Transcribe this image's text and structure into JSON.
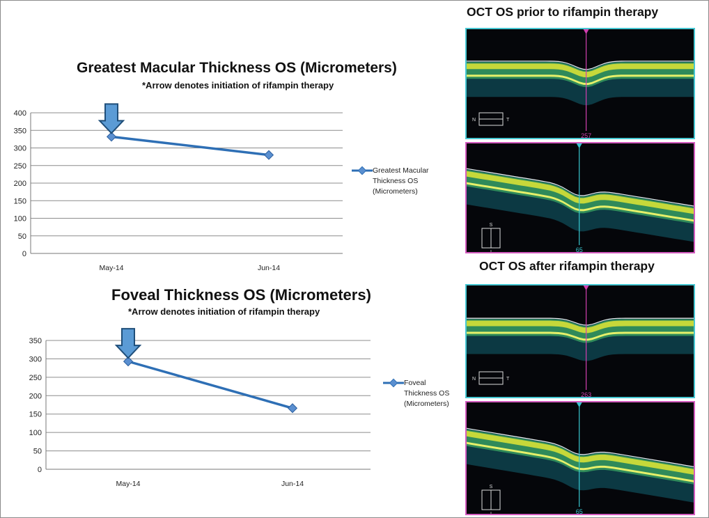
{
  "chart_data": [
    {
      "type": "line",
      "title": "Greatest Macular Thickness OS (Micrometers)",
      "subtitle": "*Arrow denotes initiation of rifampin therapy",
      "categories": [
        "May-14",
        "Jun-14"
      ],
      "series": [
        {
          "name": "Greatest Macular Thickness OS (Micrometers)",
          "values": [
            332,
            280
          ],
          "color": "#2e6fb5"
        }
      ],
      "yticks": [
        0,
        50,
        100,
        150,
        200,
        250,
        300,
        350,
        400
      ],
      "ylim": [
        0,
        400
      ],
      "xlabel": "",
      "ylabel": "",
      "grid": true,
      "legend_position": "right",
      "annotation": {
        "type": "down-arrow",
        "category": "May-14",
        "label": ""
      }
    },
    {
      "type": "line",
      "title": "Foveal Thickness OS (Micrometers)",
      "subtitle": "*Arrow denotes initiation of rifampin therapy",
      "categories": [
        "May-14",
        "Jun-14"
      ],
      "series": [
        {
          "name": "Foveal Thickness OS (Micrometers)",
          "values": [
            293,
            166
          ],
          "color": "#2e6fb5"
        }
      ],
      "yticks": [
        0,
        50,
        100,
        150,
        200,
        250,
        300,
        350
      ],
      "ylim": [
        0,
        350
      ],
      "xlabel": "",
      "ylabel": "",
      "grid": true,
      "legend_position": "right",
      "annotation": {
        "type": "down-arrow",
        "category": "May-14",
        "label": ""
      }
    }
  ],
  "legends": [
    [
      "Greatest Macular",
      "Thickness OS",
      "(Micrometers)"
    ],
    [
      "Foveal",
      "Thickness OS",
      "(Micrometers)"
    ]
  ],
  "oct": {
    "before_title": "OCT OS prior to rifampin therapy",
    "after_title": "OCT OS after rifampin therapy",
    "scans": [
      {
        "value": "257",
        "orientation": [
          "N",
          "T"
        ],
        "line_color": "#d13fb0",
        "border_color": "#46c7d2"
      },
      {
        "value": "65",
        "orientation": [
          "S",
          "I"
        ],
        "line_color": "#38c6cf",
        "border_color": "#d35bbf"
      },
      {
        "value": "263",
        "orientation": [
          "N",
          "T"
        ],
        "line_color": "#d13fb0",
        "border_color": "#46c7d2"
      },
      {
        "value": "65",
        "orientation": [
          "S",
          "I"
        ],
        "line_color": "#38c6cf",
        "border_color": "#d35bbf"
      }
    ]
  },
  "colors": {
    "series": "#2e6fb5",
    "arrow_fill": "#5b9bd5",
    "arrow_stroke": "#1f4e79",
    "grid": "#8c8c8c"
  }
}
